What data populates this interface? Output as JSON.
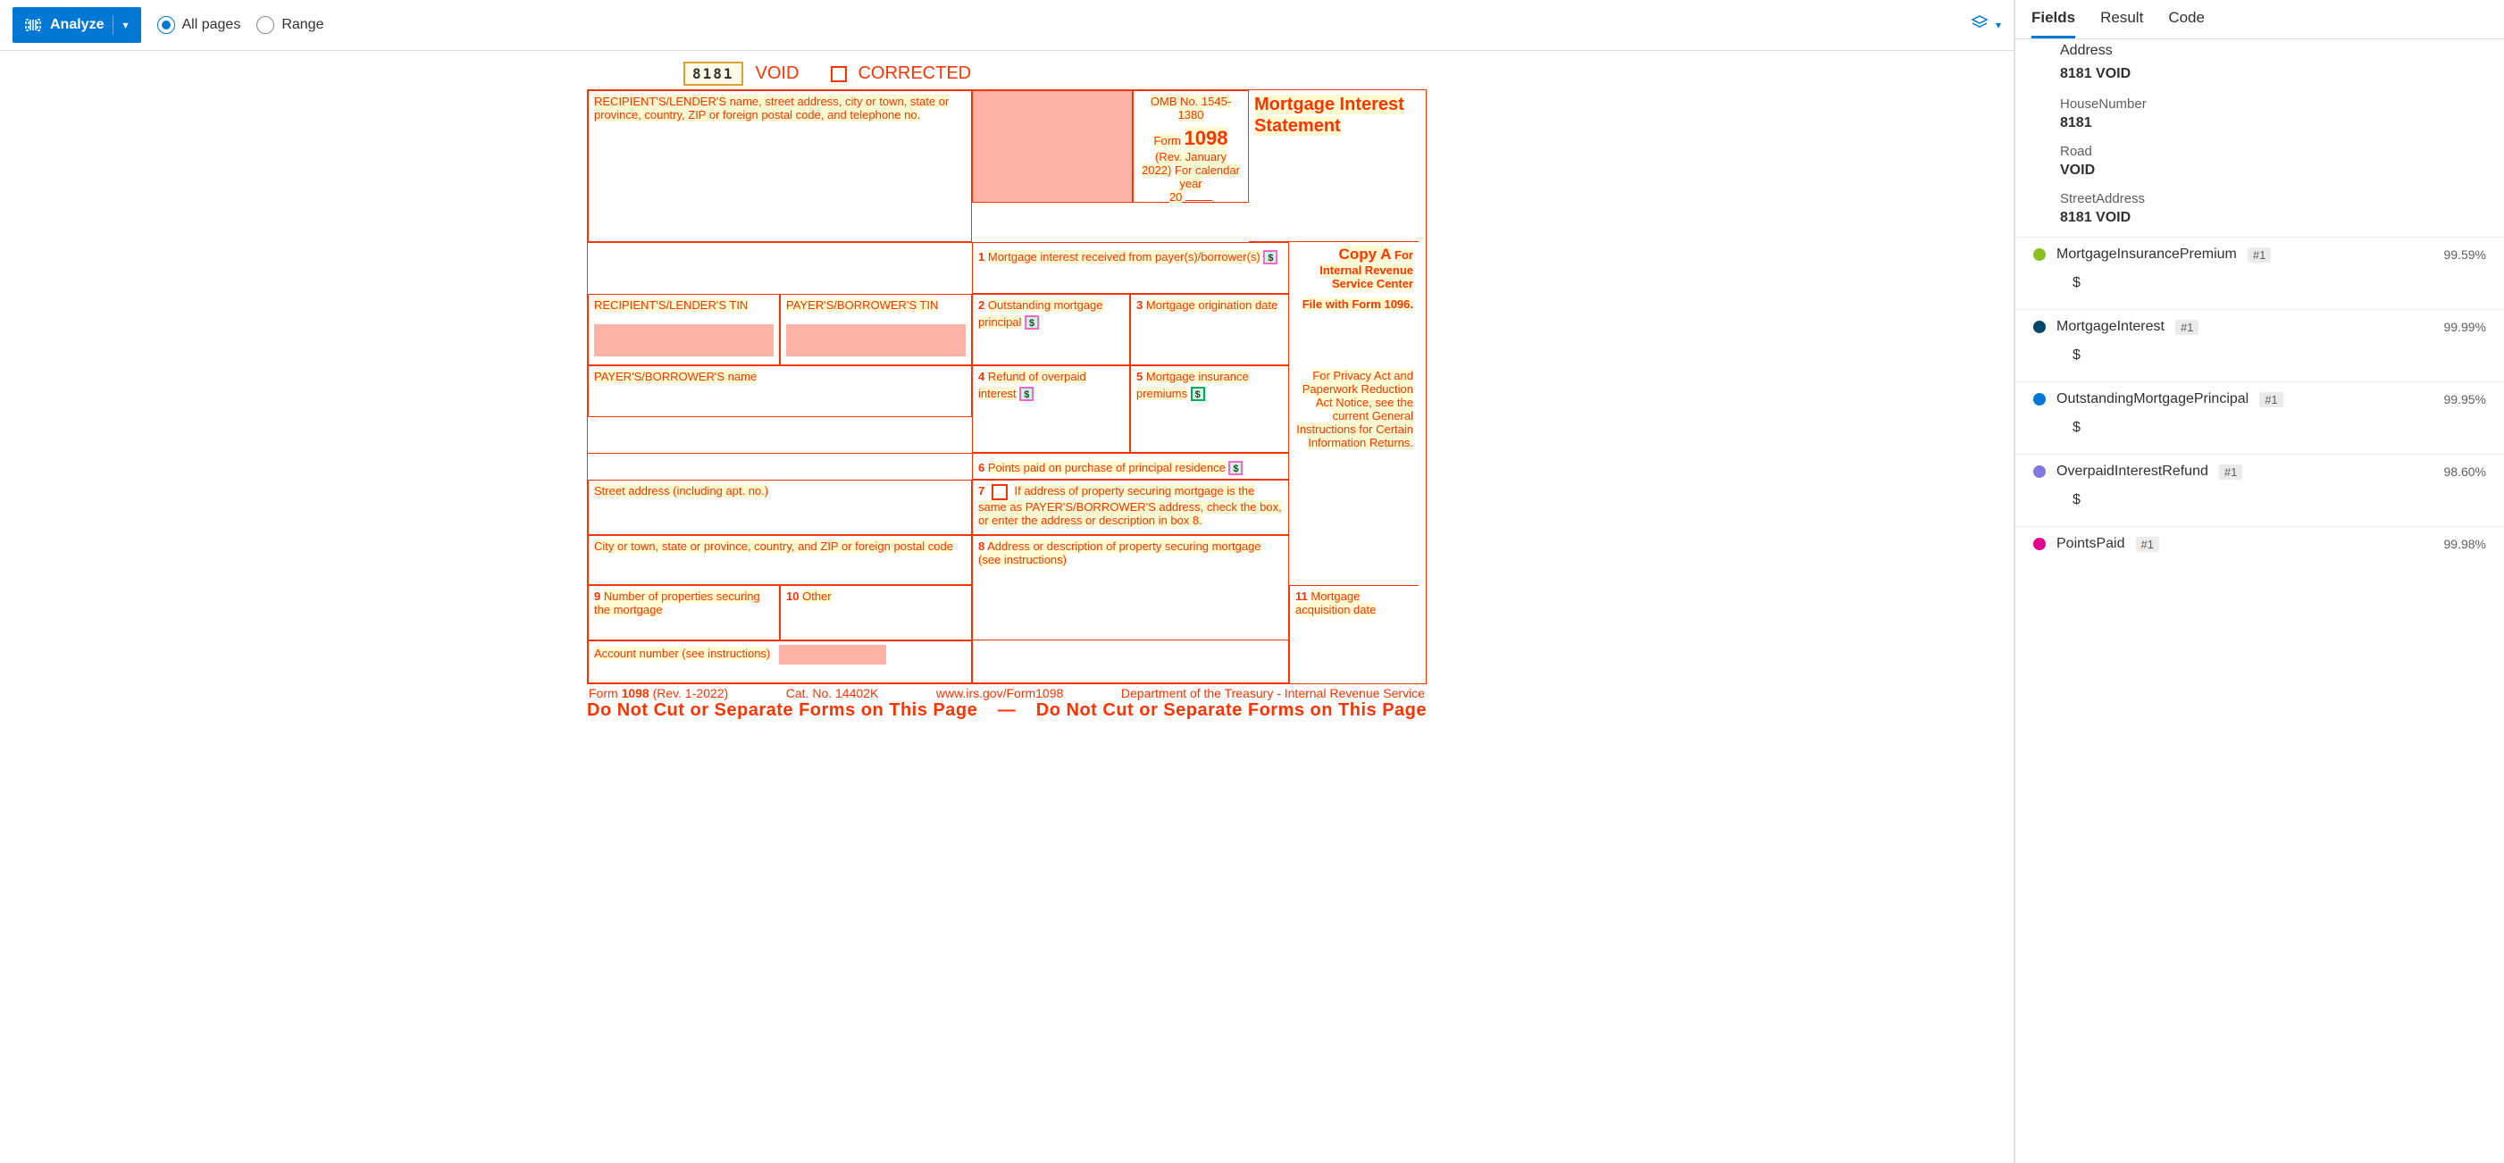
{
  "toolbar": {
    "analyze_label": "Analyze",
    "all_pages_label": "All pages",
    "range_label": "Range"
  },
  "form": {
    "code": "8181",
    "void": "VOID",
    "corrected": "CORRECTED",
    "recipient_header": "RECIPIENT'S/LENDER'S name, street address, city or town, state or province, country, ZIP or foreign postal code, and telephone no.",
    "omb": "OMB No. 1545-1380",
    "form_label": "Form",
    "form_number": "1098",
    "rev": "(Rev. January 2022)",
    "cal_year": "For calendar year",
    "year_prefix": "20",
    "title": "Mortgage Interest Statement",
    "copy": "Copy A",
    "copy_for": "For Internal Revenue Service Center",
    "file_with": "File with Form 1096.",
    "privacy": "For Privacy Act and Paperwork Reduction Act Notice, see the current General Instructions for Certain Information Returns.",
    "recipient_tin": "RECIPIENT'S/LENDER'S TIN",
    "payer_tin": "PAYER'S/BORROWER'S TIN",
    "payer_name": "PAYER'S/BORROWER'S name",
    "street": "Street address (including apt. no.)",
    "city": "City or town, state or province, country, and ZIP or foreign postal code",
    "box1": "Mortgage interest received from payer(s)/borrower(s)",
    "box2": "Outstanding mortgage principal",
    "box3": "Mortgage origination date",
    "box4": "Refund of overpaid interest",
    "box5": "Mortgage insurance premiums",
    "box6": "Points paid on purchase of principal residence",
    "box7": "If address of property securing mortgage is the same as PAYER'S/BORROWER'S address, check the box, or enter the address or description in box 8.",
    "box8": "Address or description of property securing mortgage (see instructions)",
    "box9": "Number of properties securing the mortgage",
    "box10": "Other",
    "box11": "Mortgage acquisition date",
    "acct": "Account number (see instructions)",
    "footer_form": "Form",
    "footer_form_num": "1098",
    "footer_rev": "(Rev. 1-2022)",
    "cat": "Cat. No. 14402K",
    "url": "www.irs.gov/Form1098",
    "dept": "Department of the Treasury - Internal Revenue Service",
    "warn_left": "Do Not Cut or Separate Forms on This Page",
    "warn_dash": "—",
    "warn_right": "Do Not Cut or Separate Forms on This Page"
  },
  "side": {
    "tabs": {
      "fields": "Fields",
      "result": "Result",
      "code": "Code"
    },
    "address_label": "Address",
    "address_value": "8181 VOID",
    "subfields": [
      {
        "label": "HouseNumber",
        "value": "8181"
      },
      {
        "label": "Road",
        "value": "VOID"
      },
      {
        "label": "StreetAddress",
        "value": "8181 VOID"
      }
    ],
    "fields": [
      {
        "color": "#8cbf26",
        "name": "MortgageInsurancePremium",
        "badge": "#1",
        "conf": "99.59%",
        "value": "$"
      },
      {
        "color": "#00486a",
        "name": "MortgageInterest",
        "badge": "#1",
        "conf": "99.99%",
        "value": "$"
      },
      {
        "color": "#0078d4",
        "name": "OutstandingMortgagePrincipal",
        "badge": "#1",
        "conf": "99.95%",
        "value": "$"
      },
      {
        "color": "#8378de",
        "name": "OverpaidInterestRefund",
        "badge": "#1",
        "conf": "98.60%",
        "value": "$"
      },
      {
        "color": "#e3008c",
        "name": "PointsPaid",
        "badge": "#1",
        "conf": "99.98%",
        "value": ""
      }
    ]
  }
}
